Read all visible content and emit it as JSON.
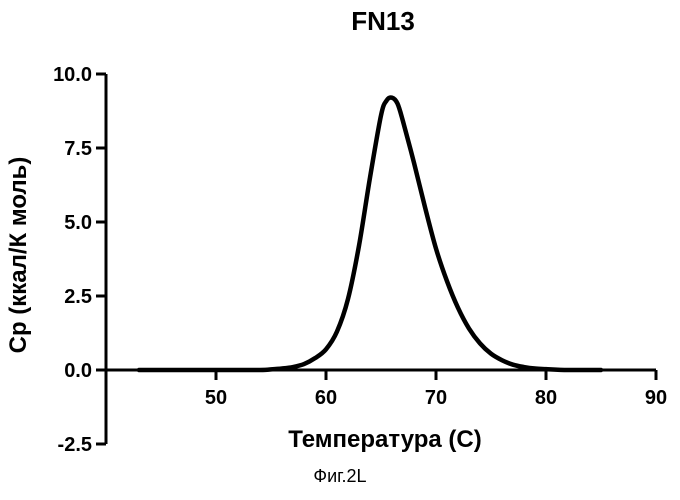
{
  "chart_data": {
    "type": "line",
    "title": "FN13",
    "xlabel": "Температура (С)",
    "ylabel": "Cp (ккал/К моль)",
    "xlim": [
      40,
      90
    ],
    "ylim": [
      -2.5,
      10.0
    ],
    "x_ticks": [
      50,
      60,
      70,
      80,
      90
    ],
    "x_tick_labels": [
      "50",
      "60",
      "70",
      "80",
      "90"
    ],
    "y_ticks": [
      -2.5,
      0.0,
      2.5,
      5.0,
      7.5,
      10.0
    ],
    "y_tick_labels": [
      "-2.5",
      "0.0",
      "2.5",
      "5.0",
      "7.5",
      "10.0"
    ],
    "grid": false,
    "legend": "none",
    "series": [
      {
        "color": "#000000",
        "x": [
          43,
          46,
          50,
          54,
          55,
          56,
          57,
          58,
          59,
          60,
          61,
          62,
          63,
          64,
          65,
          65.5,
          66,
          66.5,
          67,
          68,
          69,
          70,
          71,
          72,
          73,
          74,
          75,
          76,
          77,
          78,
          79,
          80,
          82,
          85
        ],
        "y": [
          0.0,
          0.0,
          0.0,
          0.0,
          0.02,
          0.05,
          0.1,
          0.2,
          0.4,
          0.7,
          1.3,
          2.4,
          4.2,
          6.5,
          8.6,
          9.1,
          9.2,
          9.0,
          8.4,
          7.0,
          5.5,
          4.1,
          3.0,
          2.1,
          1.4,
          0.9,
          0.55,
          0.33,
          0.18,
          0.1,
          0.05,
          0.03,
          0.0,
          0.0
        ]
      }
    ]
  },
  "caption": "Фиг.2L"
}
